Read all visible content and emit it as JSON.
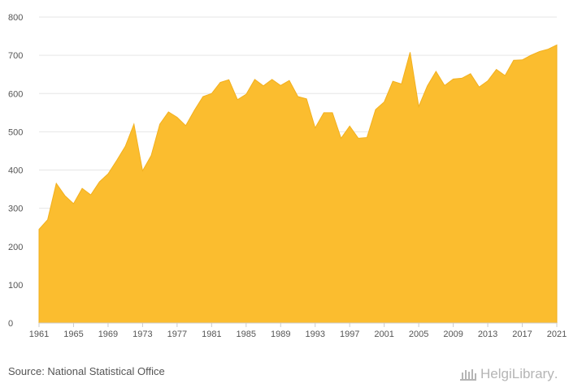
{
  "footer": {
    "source": "Source: National Statistical Office",
    "logo_text": "HelgiLibrary",
    "logo_mark": "."
  },
  "colors": {
    "area_fill": "#fbbd2f",
    "area_stroke": "#f2b01e",
    "grid": "#e6e6e6",
    "axis": "#cccccc",
    "text": "#555555"
  },
  "chart_data": {
    "type": "area",
    "title": "",
    "xlabel": "",
    "ylabel": "",
    "xlim": [
      1961,
      2021
    ],
    "ylim": [
      0,
      800
    ],
    "grid": true,
    "y_ticks": [
      0,
      100,
      200,
      300,
      400,
      500,
      600,
      700,
      800
    ],
    "x_ticks": [
      1961,
      1965,
      1969,
      1973,
      1977,
      1981,
      1985,
      1989,
      1993,
      1997,
      2001,
      2005,
      2009,
      2013,
      2017,
      2021
    ],
    "x": [
      1961,
      1962,
      1963,
      1964,
      1965,
      1966,
      1967,
      1968,
      1969,
      1970,
      1971,
      1972,
      1973,
      1974,
      1975,
      1976,
      1977,
      1978,
      1979,
      1980,
      1981,
      1982,
      1983,
      1984,
      1985,
      1986,
      1987,
      1988,
      1989,
      1990,
      1991,
      1992,
      1993,
      1994,
      1995,
      1996,
      1997,
      1998,
      1999,
      2000,
      2001,
      2002,
      2003,
      2004,
      2005,
      2006,
      2007,
      2008,
      2009,
      2010,
      2011,
      2012,
      2013,
      2014,
      2015,
      2016,
      2017,
      2018,
      2019,
      2020,
      2021
    ],
    "values": [
      245,
      270,
      365,
      333,
      312,
      352,
      335,
      369,
      390,
      425,
      462,
      520,
      398,
      438,
      520,
      552,
      538,
      516,
      556,
      592,
      600,
      629,
      636,
      584,
      598,
      637,
      620,
      637,
      621,
      634,
      592,
      586,
      510,
      550,
      550,
      483,
      515,
      483,
      485,
      558,
      578,
      632,
      625,
      708,
      566,
      620,
      658,
      621,
      638,
      640,
      652,
      617,
      633,
      663,
      647,
      687,
      688,
      700,
      710,
      716,
      727
    ]
  }
}
